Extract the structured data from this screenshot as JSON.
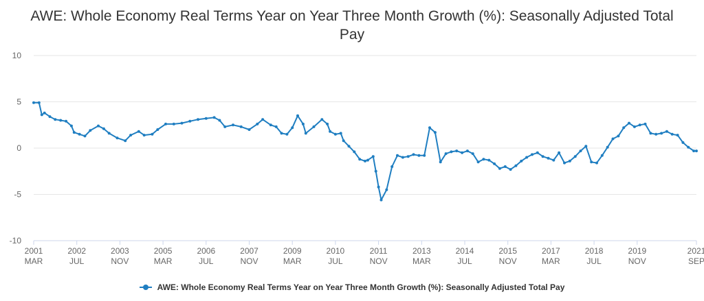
{
  "title": "AWE: Whole Economy Real Terms Year on Year Three Month Growth (%): Seasonally Adjusted Total Pay",
  "colors": {
    "series": "#1f7ec1",
    "grid": "#e6e6e6",
    "axis": "#ccd6eb",
    "text": "#333333",
    "muted": "#666666"
  },
  "legend": {
    "label": "AWE: Whole Economy Real Terms Year on Year Three Month Growth (%): Seasonally Adjusted Total Pay"
  },
  "chart_data": {
    "type": "line",
    "title": "AWE: Whole Economy Real Terms Year on Year Three Month Growth (%): Seasonally Adjusted Total Pay",
    "xlabel": "",
    "ylabel": "",
    "ylim": [
      -10,
      10
    ],
    "xlim": [
      "2001-03",
      "2021-09"
    ],
    "yticks": [
      -10,
      -5,
      0,
      5,
      10
    ],
    "xticks": [
      {
        "year": "2001",
        "month": "MAR",
        "date": "2001-03"
      },
      {
        "year": "2002",
        "month": "JUL",
        "date": "2002-07"
      },
      {
        "year": "2003",
        "month": "NOV",
        "date": "2003-11"
      },
      {
        "year": "2005",
        "month": "MAR",
        "date": "2005-03"
      },
      {
        "year": "2006",
        "month": "JUL",
        "date": "2006-07"
      },
      {
        "year": "2007",
        "month": "NOV",
        "date": "2007-11"
      },
      {
        "year": "2009",
        "month": "MAR",
        "date": "2009-03"
      },
      {
        "year": "2010",
        "month": "JUL",
        "date": "2010-07"
      },
      {
        "year": "2011",
        "month": "NOV",
        "date": "2011-11"
      },
      {
        "year": "2013",
        "month": "MAR",
        "date": "2013-03"
      },
      {
        "year": "2014",
        "month": "JUL",
        "date": "2014-07"
      },
      {
        "year": "2015",
        "month": "NOV",
        "date": "2015-11"
      },
      {
        "year": "2017",
        "month": "MAR",
        "date": "2017-03"
      },
      {
        "year": "2018",
        "month": "JUL",
        "date": "2018-07"
      },
      {
        "year": "2019",
        "month": "NOV",
        "date": "2019-11"
      },
      {
        "year": "2021",
        "month": "SEP",
        "date": "2021-09"
      }
    ],
    "grid": true,
    "legend_position": "bottom-center",
    "series": [
      {
        "name": "AWE: Whole Economy Real Terms Year on Year Three Month Growth (%): Seasonally Adjusted Total Pay",
        "color": "#1f7ec1",
        "points": [
          [
            "2001-03",
            4.9
          ],
          [
            "2001-05",
            4.9
          ],
          [
            "2001-06",
            3.6
          ],
          [
            "2001-07",
            3.8
          ],
          [
            "2001-09",
            3.4
          ],
          [
            "2001-11",
            3.1
          ],
          [
            "2002-01",
            3.0
          ],
          [
            "2002-03",
            2.9
          ],
          [
            "2002-05",
            2.4
          ],
          [
            "2002-06",
            1.7
          ],
          [
            "2002-08",
            1.5
          ],
          [
            "2002-10",
            1.3
          ],
          [
            "2002-12",
            1.9
          ],
          [
            "2003-03",
            2.4
          ],
          [
            "2003-05",
            2.1
          ],
          [
            "2003-07",
            1.6
          ],
          [
            "2003-10",
            1.1
          ],
          [
            "2004-01",
            0.8
          ],
          [
            "2004-03",
            1.4
          ],
          [
            "2004-06",
            1.8
          ],
          [
            "2004-08",
            1.4
          ],
          [
            "2004-11",
            1.5
          ],
          [
            "2005-01",
            2.0
          ],
          [
            "2005-04",
            2.6
          ],
          [
            "2005-07",
            2.6
          ],
          [
            "2005-10",
            2.7
          ],
          [
            "2006-01",
            2.9
          ],
          [
            "2006-04",
            3.1
          ],
          [
            "2006-07",
            3.2
          ],
          [
            "2006-10",
            3.3
          ],
          [
            "2006-12",
            3.0
          ],
          [
            "2007-02",
            2.3
          ],
          [
            "2007-05",
            2.5
          ],
          [
            "2007-08",
            2.3
          ],
          [
            "2007-11",
            2.0
          ],
          [
            "2008-02",
            2.6
          ],
          [
            "2008-04",
            3.1
          ],
          [
            "2008-07",
            2.5
          ],
          [
            "2008-09",
            2.3
          ],
          [
            "2008-11",
            1.6
          ],
          [
            "2009-01",
            1.5
          ],
          [
            "2009-03",
            2.2
          ],
          [
            "2009-05",
            3.5
          ],
          [
            "2009-07",
            2.6
          ],
          [
            "2009-08",
            1.6
          ],
          [
            "2009-11",
            2.3
          ],
          [
            "2010-02",
            3.1
          ],
          [
            "2010-04",
            2.6
          ],
          [
            "2010-05",
            1.8
          ],
          [
            "2010-07",
            1.5
          ],
          [
            "2010-09",
            1.6
          ],
          [
            "2010-10",
            0.8
          ],
          [
            "2010-12",
            0.2
          ],
          [
            "2011-02",
            -0.4
          ],
          [
            "2011-04",
            -1.2
          ],
          [
            "2011-06",
            -1.4
          ],
          [
            "2011-07",
            -1.3
          ],
          [
            "2011-09",
            -0.9
          ],
          [
            "2011-10",
            -2.5
          ],
          [
            "2011-11",
            -4.2
          ],
          [
            "2011-12",
            -5.6
          ],
          [
            "2012-02",
            -4.5
          ],
          [
            "2012-04",
            -2.0
          ],
          [
            "2012-06",
            -0.8
          ],
          [
            "2012-08",
            -1.0
          ],
          [
            "2012-10",
            -0.9
          ],
          [
            "2012-12",
            -0.7
          ],
          [
            "2013-02",
            -0.8
          ],
          [
            "2013-04",
            -0.8
          ],
          [
            "2013-06",
            2.2
          ],
          [
            "2013-08",
            1.7
          ],
          [
            "2013-10",
            -1.5
          ],
          [
            "2013-12",
            -0.6
          ],
          [
            "2014-02",
            -0.4
          ],
          [
            "2014-04",
            -0.3
          ],
          [
            "2014-06",
            -0.5
          ],
          [
            "2014-08",
            -0.3
          ],
          [
            "2014-10",
            -0.6
          ],
          [
            "2014-12",
            -1.5
          ],
          [
            "2015-02",
            -1.2
          ],
          [
            "2015-04",
            -1.3
          ],
          [
            "2015-06",
            -1.7
          ],
          [
            "2015-08",
            -2.2
          ],
          [
            "2015-10",
            -2.0
          ],
          [
            "2015-12",
            -2.3
          ],
          [
            "2016-02",
            -1.9
          ],
          [
            "2016-04",
            -1.4
          ],
          [
            "2016-06",
            -1.0
          ],
          [
            "2016-08",
            -0.7
          ],
          [
            "2016-10",
            -0.5
          ],
          [
            "2016-12",
            -0.9
          ],
          [
            "2017-02",
            -1.1
          ],
          [
            "2017-04",
            -1.3
          ],
          [
            "2017-06",
            -0.5
          ],
          [
            "2017-08",
            -1.6
          ],
          [
            "2017-10",
            -1.4
          ],
          [
            "2017-12",
            -0.9
          ],
          [
            "2018-02",
            -0.3
          ],
          [
            "2018-04",
            0.2
          ],
          [
            "2018-06",
            -1.5
          ],
          [
            "2018-08",
            -1.6
          ],
          [
            "2018-10",
            -0.8
          ],
          [
            "2018-12",
            0.1
          ],
          [
            "2019-02",
            1.0
          ],
          [
            "2019-04",
            1.3
          ],
          [
            "2019-06",
            2.2
          ],
          [
            "2019-08",
            2.7
          ],
          [
            "2019-10",
            2.3
          ],
          [
            "2019-12",
            2.5
          ],
          [
            "2020-02",
            2.6
          ],
          [
            "2020-04",
            1.6
          ],
          [
            "2020-06",
            1.5
          ],
          [
            "2020-08",
            1.6
          ],
          [
            "2020-10",
            1.8
          ],
          [
            "2020-12",
            1.5
          ],
          [
            "2021-02",
            1.4
          ],
          [
            "2021-04",
            0.6
          ],
          [
            "2021-06",
            0.1
          ],
          [
            "2021-08",
            -0.3
          ],
          [
            "2021-09",
            -0.3
          ]
        ]
      }
    ]
  }
}
